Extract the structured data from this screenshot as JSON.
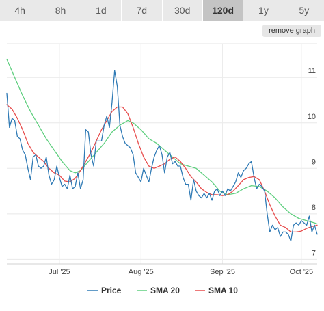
{
  "tabs": [
    {
      "label": "4h",
      "active": false
    },
    {
      "label": "8h",
      "active": false
    },
    {
      "label": "1d",
      "active": false
    },
    {
      "label": "7d",
      "active": false
    },
    {
      "label": "30d",
      "active": false
    },
    {
      "label": "120d",
      "active": true
    },
    {
      "label": "1y",
      "active": false
    },
    {
      "label": "5y",
      "active": false
    }
  ],
  "remove_graph_label": "remove graph",
  "chart_data": {
    "type": "line",
    "title": "",
    "xlabel": "",
    "ylabel": "",
    "ylim": [
      6.9,
      11.8
    ],
    "y_ticks": [
      7,
      8,
      9,
      10,
      11
    ],
    "x_ticks": [
      {
        "label": "Jul '25",
        "day": 20
      },
      {
        "label": "Aug '25",
        "day": 51
      },
      {
        "label": "Sep '25",
        "day": 82
      },
      {
        "label": "Oct '25",
        "day": 112
      }
    ],
    "grid": true,
    "legend_position": "bottom",
    "colors": {
      "Price": "#2f7ab5",
      "SMA 20": "#5fcf7f",
      "SMA 10": "#e74c4c"
    },
    "series": [
      {
        "name": "Price",
        "points": [
          [
            0,
            10.65
          ],
          [
            1,
            9.9
          ],
          [
            2,
            10.1
          ],
          [
            3,
            10.05
          ],
          [
            4,
            9.7
          ],
          [
            5,
            9.65
          ],
          [
            6,
            9.4
          ],
          [
            7,
            9.3
          ],
          [
            8,
            9.0
          ],
          [
            9,
            8.75
          ],
          [
            10,
            9.25
          ],
          [
            11,
            9.3
          ],
          [
            12,
            9.05
          ],
          [
            13,
            9.0
          ],
          [
            14,
            9.05
          ],
          [
            15,
            9.25
          ],
          [
            16,
            8.85
          ],
          [
            17,
            8.65
          ],
          [
            18,
            8.75
          ],
          [
            19,
            9.05
          ],
          [
            20,
            8.8
          ],
          [
            21,
            8.6
          ],
          [
            22,
            8.65
          ],
          [
            23,
            8.55
          ],
          [
            24,
            8.85
          ],
          [
            25,
            8.55
          ],
          [
            26,
            8.6
          ],
          [
            27,
            8.9
          ],
          [
            28,
            8.55
          ],
          [
            29,
            8.75
          ],
          [
            30,
            9.85
          ],
          [
            31,
            9.8
          ],
          [
            32,
            9.3
          ],
          [
            33,
            9.05
          ],
          [
            34,
            9.6
          ],
          [
            35,
            9.6
          ],
          [
            36,
            9.6
          ],
          [
            37,
            9.95
          ],
          [
            38,
            10.15
          ],
          [
            39,
            9.9
          ],
          [
            40,
            10.45
          ],
          [
            41,
            11.15
          ],
          [
            42,
            10.8
          ],
          [
            43,
            9.95
          ],
          [
            44,
            9.7
          ],
          [
            45,
            9.55
          ],
          [
            46,
            9.5
          ],
          [
            47,
            9.45
          ],
          [
            48,
            9.3
          ],
          [
            49,
            8.9
          ],
          [
            50,
            8.8
          ],
          [
            51,
            8.7
          ],
          [
            52,
            9.0
          ],
          [
            53,
            8.85
          ],
          [
            54,
            8.7
          ],
          [
            55,
            9.0
          ],
          [
            56,
            9.25
          ],
          [
            57,
            9.4
          ],
          [
            58,
            9.5
          ],
          [
            59,
            9.3
          ],
          [
            60,
            8.9
          ],
          [
            61,
            9.25
          ],
          [
            62,
            9.35
          ],
          [
            63,
            9.1
          ],
          [
            64,
            9.15
          ],
          [
            65,
            9.05
          ],
          [
            66,
            9.05
          ],
          [
            67,
            8.8
          ],
          [
            68,
            8.65
          ],
          [
            69,
            8.65
          ],
          [
            70,
            8.3
          ],
          [
            71,
            8.75
          ],
          [
            72,
            8.5
          ],
          [
            73,
            8.4
          ],
          [
            74,
            8.35
          ],
          [
            75,
            8.45
          ],
          [
            76,
            8.35
          ],
          [
            77,
            8.45
          ],
          [
            78,
            8.3
          ],
          [
            79,
            8.5
          ],
          [
            80,
            8.55
          ],
          [
            81,
            8.4
          ],
          [
            82,
            8.5
          ],
          [
            83,
            8.4
          ],
          [
            84,
            8.55
          ],
          [
            85,
            8.5
          ],
          [
            86,
            8.6
          ],
          [
            87,
            8.7
          ],
          [
            88,
            8.9
          ],
          [
            89,
            8.8
          ],
          [
            90,
            8.95
          ],
          [
            91,
            9.0
          ],
          [
            92,
            9.1
          ],
          [
            93,
            9.15
          ],
          [
            94,
            8.8
          ],
          [
            95,
            8.55
          ],
          [
            96,
            8.65
          ],
          [
            97,
            8.6
          ],
          [
            98,
            8.5
          ],
          [
            99,
            8.0
          ],
          [
            100,
            7.6
          ],
          [
            101,
            7.75
          ],
          [
            102,
            7.65
          ],
          [
            103,
            7.7
          ],
          [
            104,
            7.5
          ],
          [
            105,
            7.6
          ],
          [
            106,
            7.6
          ],
          [
            107,
            7.55
          ],
          [
            108,
            7.4
          ],
          [
            109,
            7.75
          ],
          [
            110,
            7.8
          ],
          [
            111,
            7.75
          ],
          [
            112,
            7.85
          ],
          [
            113,
            7.8
          ],
          [
            114,
            7.75
          ],
          [
            115,
            7.95
          ],
          [
            116,
            7.6
          ],
          [
            117,
            7.75
          ],
          [
            118,
            7.55
          ]
        ]
      },
      {
        "name": "SMA 20",
        "points": [
          [
            0,
            11.4
          ],
          [
            3,
            11.0
          ],
          [
            6,
            10.6
          ],
          [
            9,
            10.25
          ],
          [
            12,
            9.95
          ],
          [
            15,
            9.65
          ],
          [
            18,
            9.4
          ],
          [
            21,
            9.15
          ],
          [
            24,
            8.95
          ],
          [
            26,
            8.9
          ],
          [
            28,
            8.95
          ],
          [
            31,
            9.15
          ],
          [
            34,
            9.35
          ],
          [
            37,
            9.55
          ],
          [
            40,
            9.8
          ],
          [
            43,
            9.95
          ],
          [
            46,
            10.05
          ],
          [
            48,
            10.0
          ],
          [
            51,
            9.85
          ],
          [
            54,
            9.65
          ],
          [
            57,
            9.55
          ],
          [
            60,
            9.4
          ],
          [
            63,
            9.25
          ],
          [
            66,
            9.1
          ],
          [
            69,
            9.05
          ],
          [
            72,
            9.0
          ],
          [
            75,
            8.85
          ],
          [
            78,
            8.7
          ],
          [
            81,
            8.5
          ],
          [
            84,
            8.42
          ],
          [
            87,
            8.45
          ],
          [
            90,
            8.55
          ],
          [
            93,
            8.62
          ],
          [
            96,
            8.6
          ],
          [
            99,
            8.5
          ],
          [
            102,
            8.35
          ],
          [
            105,
            8.15
          ],
          [
            108,
            8.0
          ],
          [
            111,
            7.9
          ],
          [
            114,
            7.85
          ],
          [
            117,
            7.8
          ],
          [
            118,
            7.78
          ]
        ]
      },
      {
        "name": "SMA 10",
        "points": [
          [
            0,
            10.4
          ],
          [
            2,
            10.3
          ],
          [
            4,
            10.1
          ],
          [
            6,
            9.85
          ],
          [
            8,
            9.55
          ],
          [
            10,
            9.35
          ],
          [
            12,
            9.25
          ],
          [
            14,
            9.15
          ],
          [
            16,
            9.0
          ],
          [
            18,
            8.9
          ],
          [
            20,
            8.85
          ],
          [
            22,
            8.72
          ],
          [
            24,
            8.7
          ],
          [
            26,
            8.78
          ],
          [
            28,
            8.95
          ],
          [
            30,
            9.15
          ],
          [
            32,
            9.35
          ],
          [
            34,
            9.6
          ],
          [
            36,
            9.85
          ],
          [
            38,
            10.05
          ],
          [
            40,
            10.25
          ],
          [
            42,
            10.35
          ],
          [
            44,
            10.35
          ],
          [
            46,
            10.2
          ],
          [
            48,
            9.9
          ],
          [
            50,
            9.55
          ],
          [
            52,
            9.25
          ],
          [
            54,
            9.05
          ],
          [
            56,
            9.0
          ],
          [
            58,
            9.05
          ],
          [
            60,
            9.1
          ],
          [
            62,
            9.2
          ],
          [
            64,
            9.25
          ],
          [
            66,
            9.15
          ],
          [
            68,
            9.0
          ],
          [
            70,
            8.82
          ],
          [
            72,
            8.7
          ],
          [
            74,
            8.55
          ],
          [
            76,
            8.47
          ],
          [
            78,
            8.42
          ],
          [
            80,
            8.42
          ],
          [
            82,
            8.4
          ],
          [
            84,
            8.42
          ],
          [
            86,
            8.5
          ],
          [
            88,
            8.62
          ],
          [
            90,
            8.75
          ],
          [
            92,
            8.8
          ],
          [
            94,
            8.82
          ],
          [
            96,
            8.75
          ],
          [
            98,
            8.5
          ],
          [
            100,
            8.2
          ],
          [
            102,
            7.95
          ],
          [
            104,
            7.75
          ],
          [
            106,
            7.7
          ],
          [
            108,
            7.6
          ],
          [
            110,
            7.6
          ],
          [
            112,
            7.62
          ],
          [
            114,
            7.68
          ],
          [
            116,
            7.72
          ],
          [
            118,
            7.75
          ]
        ]
      }
    ]
  }
}
